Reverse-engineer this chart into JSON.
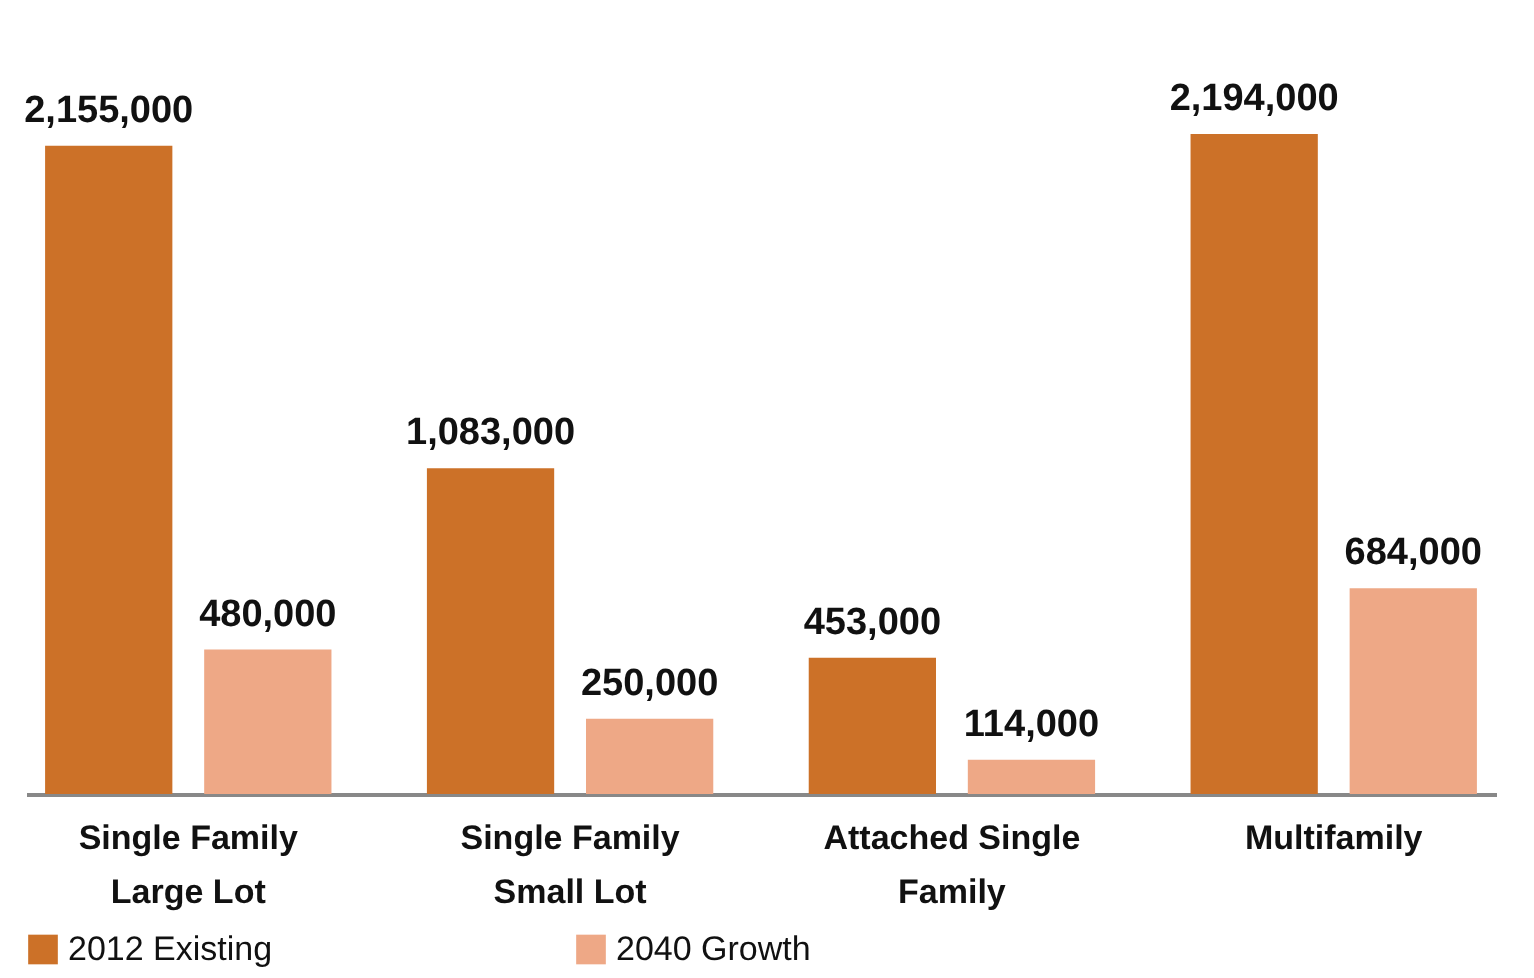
{
  "chart_data": {
    "type": "bar",
    "categories": [
      "Single Family Large Lot",
      "Single Family Small Lot",
      "Attached Single Family",
      "Multifamily"
    ],
    "series": [
      {
        "name": "2012 Existing",
        "color": "#cc7128",
        "values": [
          2155000,
          1083000,
          453000,
          2194000
        ],
        "value_labels": [
          "2,155,000",
          "1,083,000",
          "453,000",
          "2,194,000"
        ]
      },
      {
        "name": "2040 Growth",
        "color": "#eea886",
        "values": [
          480000,
          250000,
          114000,
          684000
        ],
        "value_labels": [
          "480,000",
          "250,000",
          "114,000",
          "684,000"
        ]
      }
    ],
    "legend": "bottom",
    "grid": false
  }
}
